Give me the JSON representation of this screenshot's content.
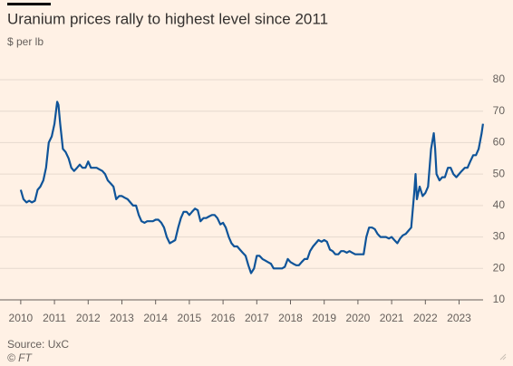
{
  "chart_data": {
    "type": "line",
    "title": "Uranium prices rally to highest level since 2011",
    "subtitle": "$ per lb",
    "source": "Source: UxC",
    "credit": "© FT",
    "x": [
      2010.0,
      2010.08,
      2010.17,
      2010.25,
      2010.33,
      2010.42,
      2010.5,
      2010.58,
      2010.67,
      2010.75,
      2010.83,
      2010.92,
      2011.0,
      2011.08,
      2011.12,
      2011.17,
      2011.25,
      2011.33,
      2011.42,
      2011.5,
      2011.58,
      2011.67,
      2011.75,
      2011.83,
      2011.92,
      2012.0,
      2012.08,
      2012.17,
      2012.25,
      2012.33,
      2012.42,
      2012.5,
      2012.58,
      2012.67,
      2012.75,
      2012.83,
      2012.92,
      2013.0,
      2013.08,
      2013.17,
      2013.25,
      2013.33,
      2013.42,
      2013.5,
      2013.58,
      2013.67,
      2013.75,
      2013.83,
      2013.92,
      2014.0,
      2014.08,
      2014.17,
      2014.25,
      2014.33,
      2014.42,
      2014.5,
      2014.58,
      2014.67,
      2014.75,
      2014.83,
      2014.92,
      2015.0,
      2015.08,
      2015.17,
      2015.25,
      2015.33,
      2015.42,
      2015.5,
      2015.58,
      2015.67,
      2015.75,
      2015.83,
      2015.92,
      2016.0,
      2016.08,
      2016.17,
      2016.25,
      2016.33,
      2016.42,
      2016.5,
      2016.58,
      2016.67,
      2016.75,
      2016.83,
      2016.92,
      2017.0,
      2017.08,
      2017.17,
      2017.25,
      2017.33,
      2017.42,
      2017.5,
      2017.58,
      2017.67,
      2017.75,
      2017.83,
      2017.92,
      2018.0,
      2018.08,
      2018.17,
      2018.25,
      2018.33,
      2018.42,
      2018.5,
      2018.58,
      2018.67,
      2018.75,
      2018.83,
      2018.92,
      2019.0,
      2019.08,
      2019.17,
      2019.25,
      2019.33,
      2019.42,
      2019.5,
      2019.58,
      2019.67,
      2019.75,
      2019.83,
      2019.92,
      2020.0,
      2020.17,
      2020.25,
      2020.33,
      2020.42,
      2020.5,
      2020.58,
      2020.67,
      2020.75,
      2020.83,
      2020.92,
      2021.0,
      2021.08,
      2021.17,
      2021.25,
      2021.33,
      2021.42,
      2021.5,
      2021.58,
      2021.67,
      2021.71,
      2021.75,
      2021.83,
      2021.92,
      2022.0,
      2022.08,
      2022.17,
      2022.25,
      2022.29,
      2022.33,
      2022.42,
      2022.5,
      2022.58,
      2022.67,
      2022.75,
      2022.83,
      2022.92,
      2023.0,
      2023.08,
      2023.17,
      2023.25,
      2023.33,
      2023.42,
      2023.5,
      2023.58,
      2023.67,
      2023.71
    ],
    "series": [
      {
        "color": "#0f5499",
        "values": [
          45,
          42,
          41,
          41.5,
          41,
          41.5,
          45,
          46,
          48,
          52,
          60,
          62,
          66,
          73,
          72,
          66,
          58,
          57,
          55,
          52,
          51,
          52,
          53,
          52,
          52,
          54,
          52,
          52,
          52,
          51.5,
          51,
          50,
          48,
          47,
          46,
          42,
          43,
          43,
          42.5,
          42,
          41,
          40,
          40,
          37,
          35,
          34.5,
          35,
          35,
          35,
          35.5,
          35.5,
          34.5,
          33,
          30,
          28,
          28.5,
          29,
          33,
          36,
          38,
          38,
          37,
          38,
          39,
          38.5,
          35,
          36,
          36,
          36.5,
          37,
          37,
          36,
          34,
          34.5,
          33,
          30,
          28,
          27,
          27,
          26,
          25,
          24,
          21,
          18.5,
          20,
          24,
          24,
          23,
          22.5,
          22,
          21.5,
          20,
          20,
          20,
          20,
          20.5,
          23,
          22,
          21.5,
          21,
          21,
          22,
          23,
          23,
          25.5,
          27,
          28,
          29,
          28.5,
          29,
          28.5,
          26,
          25.5,
          24.5,
          24.5,
          25.5,
          25.5,
          25,
          25.5,
          25,
          24.5,
          24.5,
          24.5,
          30,
          33,
          33,
          32.5,
          31,
          30,
          30,
          30,
          29.5,
          30,
          29,
          28,
          29.5,
          30.5,
          31,
          32,
          33,
          44,
          50,
          42,
          46,
          43,
          44,
          46,
          58,
          63,
          58,
          50,
          48,
          49,
          49,
          52,
          52,
          50,
          49,
          50,
          51,
          52,
          52,
          54,
          56,
          56,
          58,
          63,
          66
        ]
      }
    ],
    "xlim": [
      2009.6,
      2023.9
    ],
    "xticks": [
      2010,
      2011,
      2012,
      2013,
      2014,
      2015,
      2016,
      2017,
      2018,
      2019,
      2020,
      2021,
      2022,
      2023
    ],
    "ylim": [
      10,
      80
    ],
    "yticks": [
      10,
      20,
      30,
      40,
      50,
      60,
      70,
      80
    ],
    "grid": true
  }
}
